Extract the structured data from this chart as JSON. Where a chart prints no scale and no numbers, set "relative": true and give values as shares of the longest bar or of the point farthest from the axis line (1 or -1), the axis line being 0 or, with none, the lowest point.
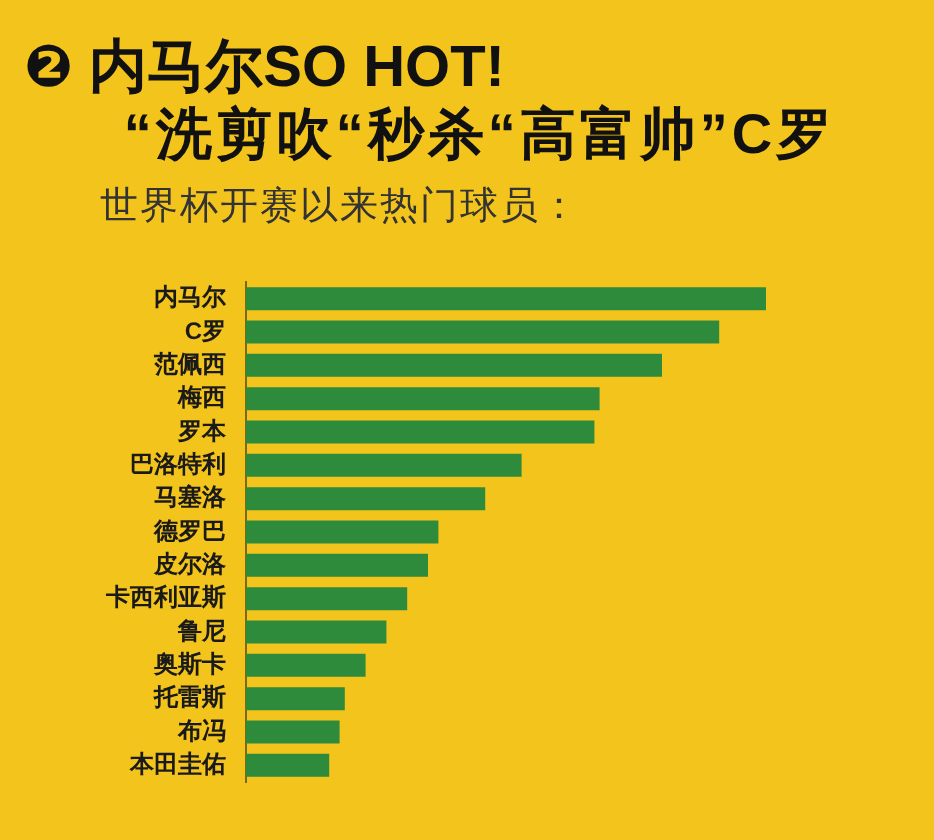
{
  "chart_data": {
    "type": "bar",
    "orientation": "horizontal",
    "relative": true,
    "title": "❷ 内马尔SO HOT!",
    "subtitle": "“洗剪吹“秒杀“高富帅”C罗",
    "annotations": [
      "世界杯开赛以来热门球员："
    ],
    "categories": [
      "内马尔",
      "C罗",
      "范佩西",
      "梅西",
      "罗本",
      "巴洛特利",
      "马塞洛",
      "德罗巴",
      "皮尔洛",
      "卡西利亚斯",
      "鲁尼",
      "奥斯卡",
      "托雷斯",
      "布冯",
      "本田圭佑"
    ],
    "values": [
      1,
      0.91,
      0.8,
      0.68,
      0.67,
      0.53,
      0.46,
      0.37,
      0.35,
      0.31,
      0.27,
      0.23,
      0.19,
      0.18,
      0.16
    ],
    "color": "#2e8b3c"
  }
}
